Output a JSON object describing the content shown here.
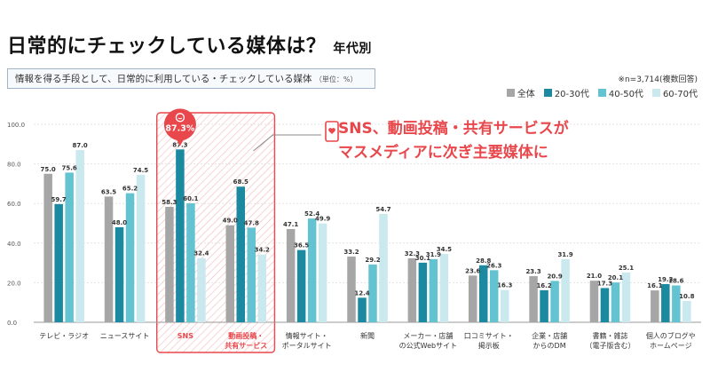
{
  "header": {
    "title": "日常的にチェックしている媒体は？",
    "title_sub": "年代別",
    "subtitle": "情報を得る手段として、日常的に利用している・チェックしている媒体",
    "unit": "（単位：%）",
    "note": "※n=3,714(複数回答)"
  },
  "callout": {
    "line1": "SNS、動画投稿・共有サービスが",
    "line2": "マスメディアに次ぎ主要媒体に"
  },
  "highlight_badge": "87.3%",
  "colors": {
    "all": "#a6a6a6",
    "20_30": "#1b8aa0",
    "40_50": "#63c3d1",
    "60_70": "#c9e9ef",
    "accent": "#e8474b"
  },
  "chart_data": {
    "type": "bar",
    "categories": [
      [
        "テレビ・ラジオ"
      ],
      [
        "ニュースサイト"
      ],
      [
        "SNS"
      ],
      [
        "動画投稿・",
        "共有サービス"
      ],
      [
        "情報サイト・",
        "ポータルサイト"
      ],
      [
        "新聞"
      ],
      [
        "メーカー・店舗",
        "の公式Webサイト"
      ],
      [
        "口コミサイト・",
        "掲示板"
      ],
      [
        "企業・店舗",
        "からのDM"
      ],
      [
        "書籍・雑誌",
        "（電子版含む）"
      ],
      [
        "個人のブログや",
        "ホームページ"
      ]
    ],
    "series": [
      {
        "name": "全体",
        "values": [
          75.0,
          63.5,
          58.3,
          49.0,
          47.1,
          33.2,
          32.3,
          23.6,
          23.3,
          21.0,
          16.1
        ]
      },
      {
        "name": "20-30代",
        "values": [
          59.7,
          48.0,
          87.3,
          68.5,
          36.5,
          12.4,
          30.1,
          28.8,
          16.2,
          17.3,
          19.3
        ]
      },
      {
        "name": "40-50代",
        "values": [
          75.6,
          65.2,
          60.1,
          47.8,
          52.4,
          29.2,
          31.9,
          26.3,
          20.9,
          20.1,
          18.6
        ]
      },
      {
        "name": "60-70代",
        "values": [
          87.0,
          74.5,
          32.4,
          34.2,
          49.9,
          54.7,
          34.5,
          16.3,
          31.9,
          25.1,
          10.8
        ]
      }
    ],
    "ylim": [
      0,
      100
    ],
    "yticks": [
      "0.0",
      "20.0",
      "40.0",
      "60.0",
      "80.0",
      "100.0"
    ],
    "grid": true,
    "legend_position": "top-right",
    "highlighted_categories": [
      2,
      3
    ]
  }
}
